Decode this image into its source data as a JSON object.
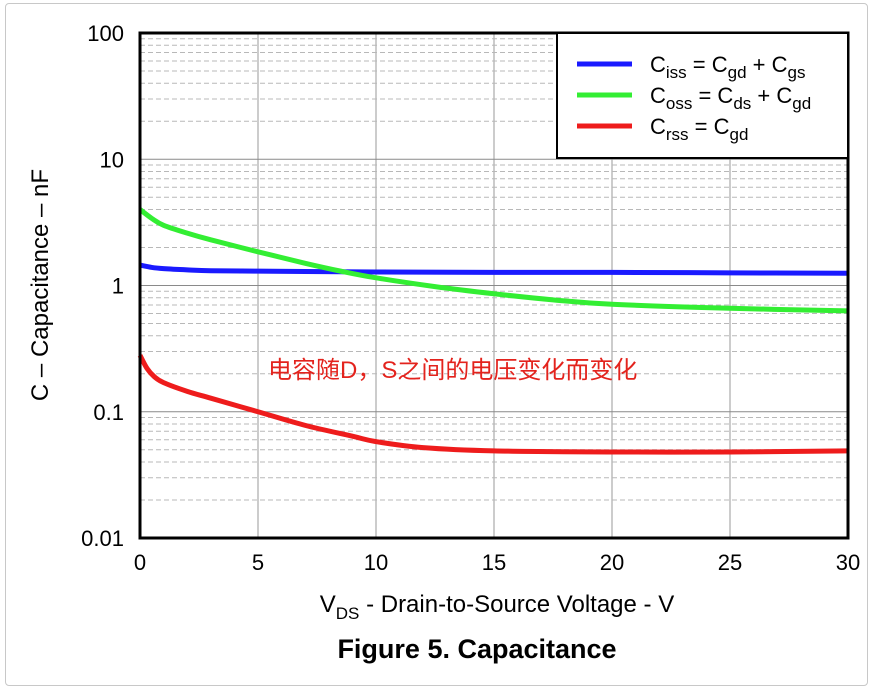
{
  "chart_data": {
    "type": "line",
    "title": "Figure 5. Capacitance",
    "xlabel": {
      "main": "V",
      "sub": "DS",
      "rest": " - Drain-to-Source Voltage - V"
    },
    "ylabel": "C – Capacitance – nF",
    "xlim": [
      0,
      30
    ],
    "ylim": [
      0.01,
      100
    ],
    "yscale": "log",
    "xticks": [
      0,
      5,
      10,
      15,
      20,
      25,
      30
    ],
    "xtick_labels": [
      "0",
      "5",
      "10",
      "15",
      "20",
      "25",
      "30"
    ],
    "yticks": [
      100,
      10,
      1,
      0.1,
      0.01
    ],
    "ytick_labels": [
      "100",
      "10",
      "1",
      "0.1",
      "0.01"
    ],
    "grid": true,
    "legend_position": "top-right",
    "annotation": "电容随D，S之间的电压变化而变化",
    "series": [
      {
        "name": "Ciss = Cgd + Cgs",
        "legend": {
          "c1": "C",
          "s1": "iss",
          "mid": " = C",
          "s2": "gd",
          "mid2": " + C",
          "s3": "gs"
        },
        "color": "#1a1aff",
        "x": [
          0,
          0.5,
          1,
          2,
          3,
          5,
          7,
          10,
          15,
          20,
          25,
          30
        ],
        "y": [
          1.45,
          1.39,
          1.36,
          1.33,
          1.31,
          1.3,
          1.29,
          1.28,
          1.27,
          1.27,
          1.26,
          1.25
        ]
      },
      {
        "name": "Coss = Cds + Cgd",
        "legend": {
          "c1": "C",
          "s1": "oss",
          "mid": " = C",
          "s2": "ds",
          "mid2": " + C",
          "s3": "gd"
        },
        "color": "#33ee33",
        "x": [
          0,
          0.5,
          1,
          2,
          3,
          5,
          7,
          8.5,
          10,
          12.5,
          15,
          17.5,
          20,
          25,
          30
        ],
        "y": [
          4.0,
          3.4,
          3.0,
          2.6,
          2.3,
          1.85,
          1.5,
          1.3,
          1.15,
          0.98,
          0.86,
          0.77,
          0.71,
          0.66,
          0.63
        ]
      },
      {
        "name": "Crss = Cgd",
        "legend": {
          "c1": "C",
          "s1": "rss",
          "mid": " =  C",
          "s2": "gd",
          "mid2": "",
          "s3": ""
        },
        "color": "#ee1c1c",
        "x": [
          0,
          0.3,
          0.6,
          1,
          2,
          3,
          5,
          7,
          9,
          10,
          12,
          15,
          20,
          25,
          30
        ],
        "y": [
          0.28,
          0.22,
          0.19,
          0.17,
          0.145,
          0.128,
          0.1,
          0.078,
          0.064,
          0.058,
          0.052,
          0.049,
          0.048,
          0.048,
          0.049
        ]
      }
    ]
  }
}
